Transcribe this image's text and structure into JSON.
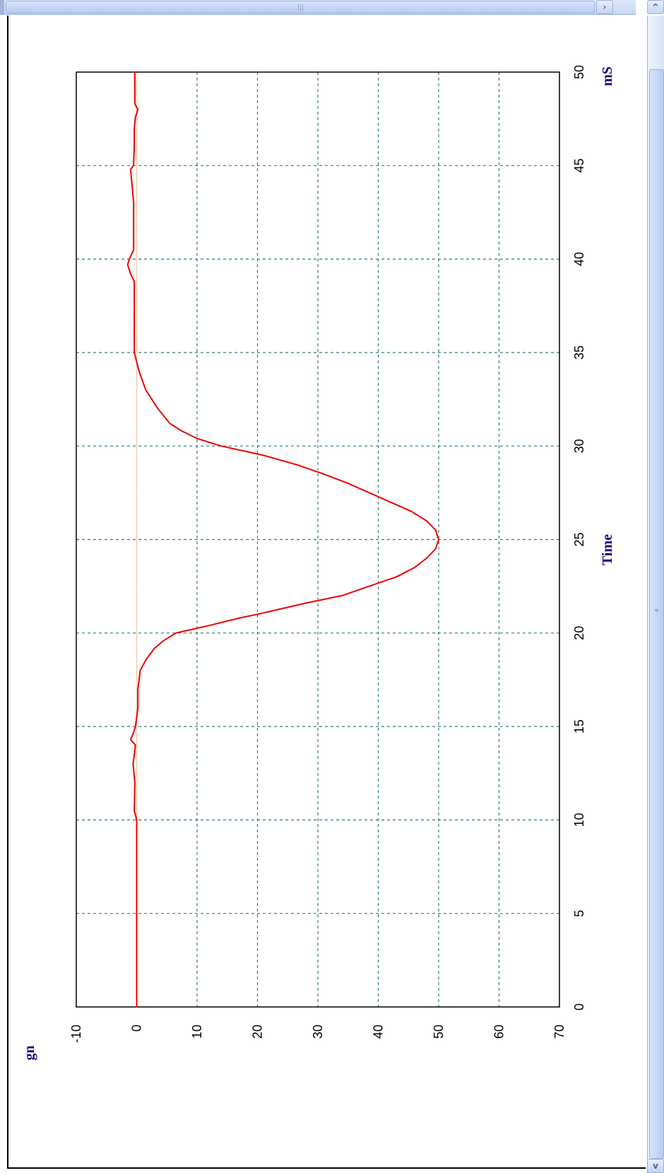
{
  "window": {
    "scroll_grip": "|||",
    "v_scroll_grip": "≡",
    "arrow_left": "◀",
    "arrow_right": "›",
    "arrow_up": "^",
    "arrow_down": "v"
  },
  "colors": {
    "series": "#ee0000",
    "grid": "#2e7d7d",
    "baseline": "#f0d2b4",
    "axis_title": "#0a0a78"
  },
  "chart_data": {
    "type": "line",
    "rotated": "90deg clockwise (x axis runs vertically)",
    "title": "",
    "xlabel": "Time",
    "xunit": "mS",
    "ylabel": "gn",
    "xlim": [
      0,
      50
    ],
    "ylim": [
      -10,
      70
    ],
    "x_ticks": [
      "0",
      "5",
      "10",
      "15",
      "20",
      "25",
      "30",
      "35",
      "40",
      "45",
      "50"
    ],
    "y_ticks": [
      "-10",
      "0",
      "10",
      "20",
      "30",
      "40",
      "50",
      "60",
      "70"
    ],
    "grid": true,
    "legend": "none",
    "series": [
      {
        "x": [
          0,
          10,
          10.5,
          12,
          13,
          14,
          14.3,
          14.6,
          15,
          16,
          17,
          18,
          18.6,
          19.2,
          19.6,
          20,
          20.4,
          20.8,
          21,
          21.3,
          21.6,
          22,
          22.5,
          23,
          23.5,
          24,
          24.5,
          25,
          25.5,
          26,
          26.5,
          27,
          27.5,
          28,
          28.5,
          29,
          29.5,
          30,
          30.4,
          30.8,
          31.2,
          31.6,
          32,
          32.5,
          33,
          34,
          35,
          36,
          37,
          38,
          38.8,
          39.2,
          39.7,
          40,
          40.5,
          41,
          43,
          44.8,
          45,
          45.2,
          46,
          47,
          47.6,
          48,
          48.3,
          50
        ],
        "y": [
          0,
          0,
          -0.4,
          -0.3,
          -0.6,
          -0.2,
          -1.0,
          -0.6,
          -0.2,
          0.2,
          0.2,
          0.6,
          1.6,
          3.0,
          4.5,
          6.5,
          12,
          17,
          20,
          24,
          28,
          34,
          38.5,
          43,
          46,
          48,
          49.5,
          50,
          49.5,
          48,
          45.5,
          42,
          38.5,
          35,
          31,
          26.5,
          21,
          14,
          10,
          7.5,
          5.5,
          4.5,
          3.5,
          2.5,
          1.5,
          0.4,
          -0.4,
          -0.4,
          -0.4,
          -0.4,
          -0.4,
          -1.0,
          -1.5,
          -1.2,
          -0.5,
          -0.5,
          -0.5,
          -1.0,
          -0.5,
          -0.5,
          -0.4,
          -0.4,
          -0.2,
          0.2,
          -0.3,
          -0.3
        ]
      }
    ],
    "baseline_y": 0
  }
}
